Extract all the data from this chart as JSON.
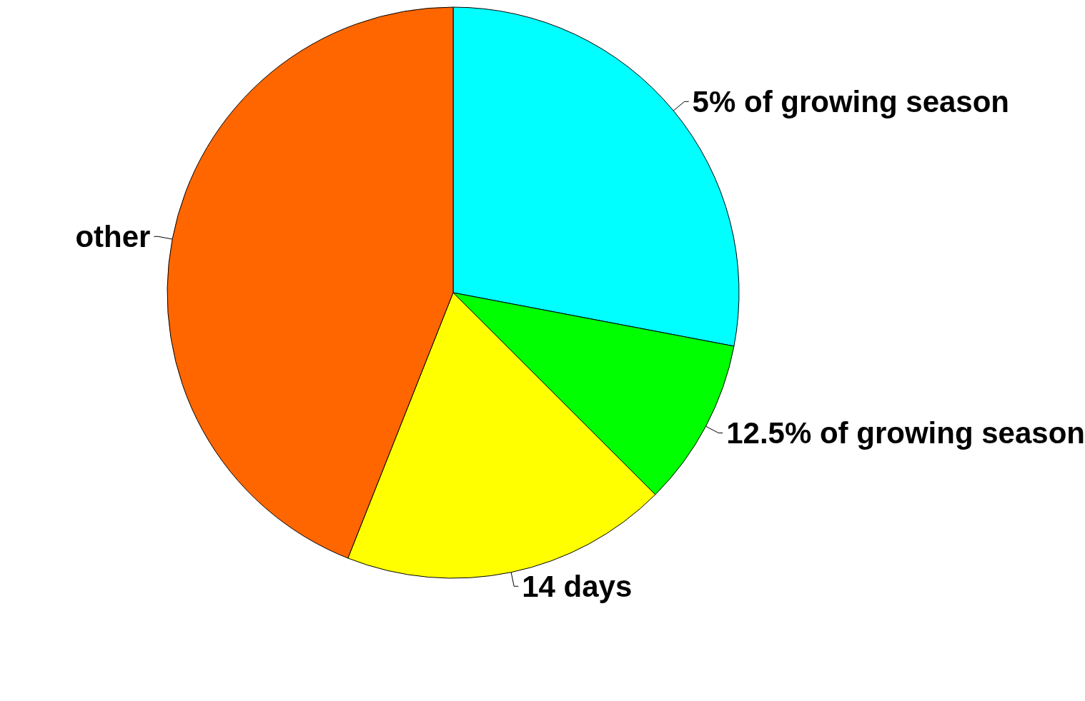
{
  "chart_data": {
    "type": "pie",
    "categories": [
      "5% of growing season",
      "12.5% of growing season",
      "14 days",
      "other"
    ],
    "values": [
      28,
      9.5,
      18.5,
      44
    ],
    "colors": [
      "#00ffff",
      "#00ff00",
      "#ffff00",
      "#ff6600"
    ],
    "legend": false
  }
}
